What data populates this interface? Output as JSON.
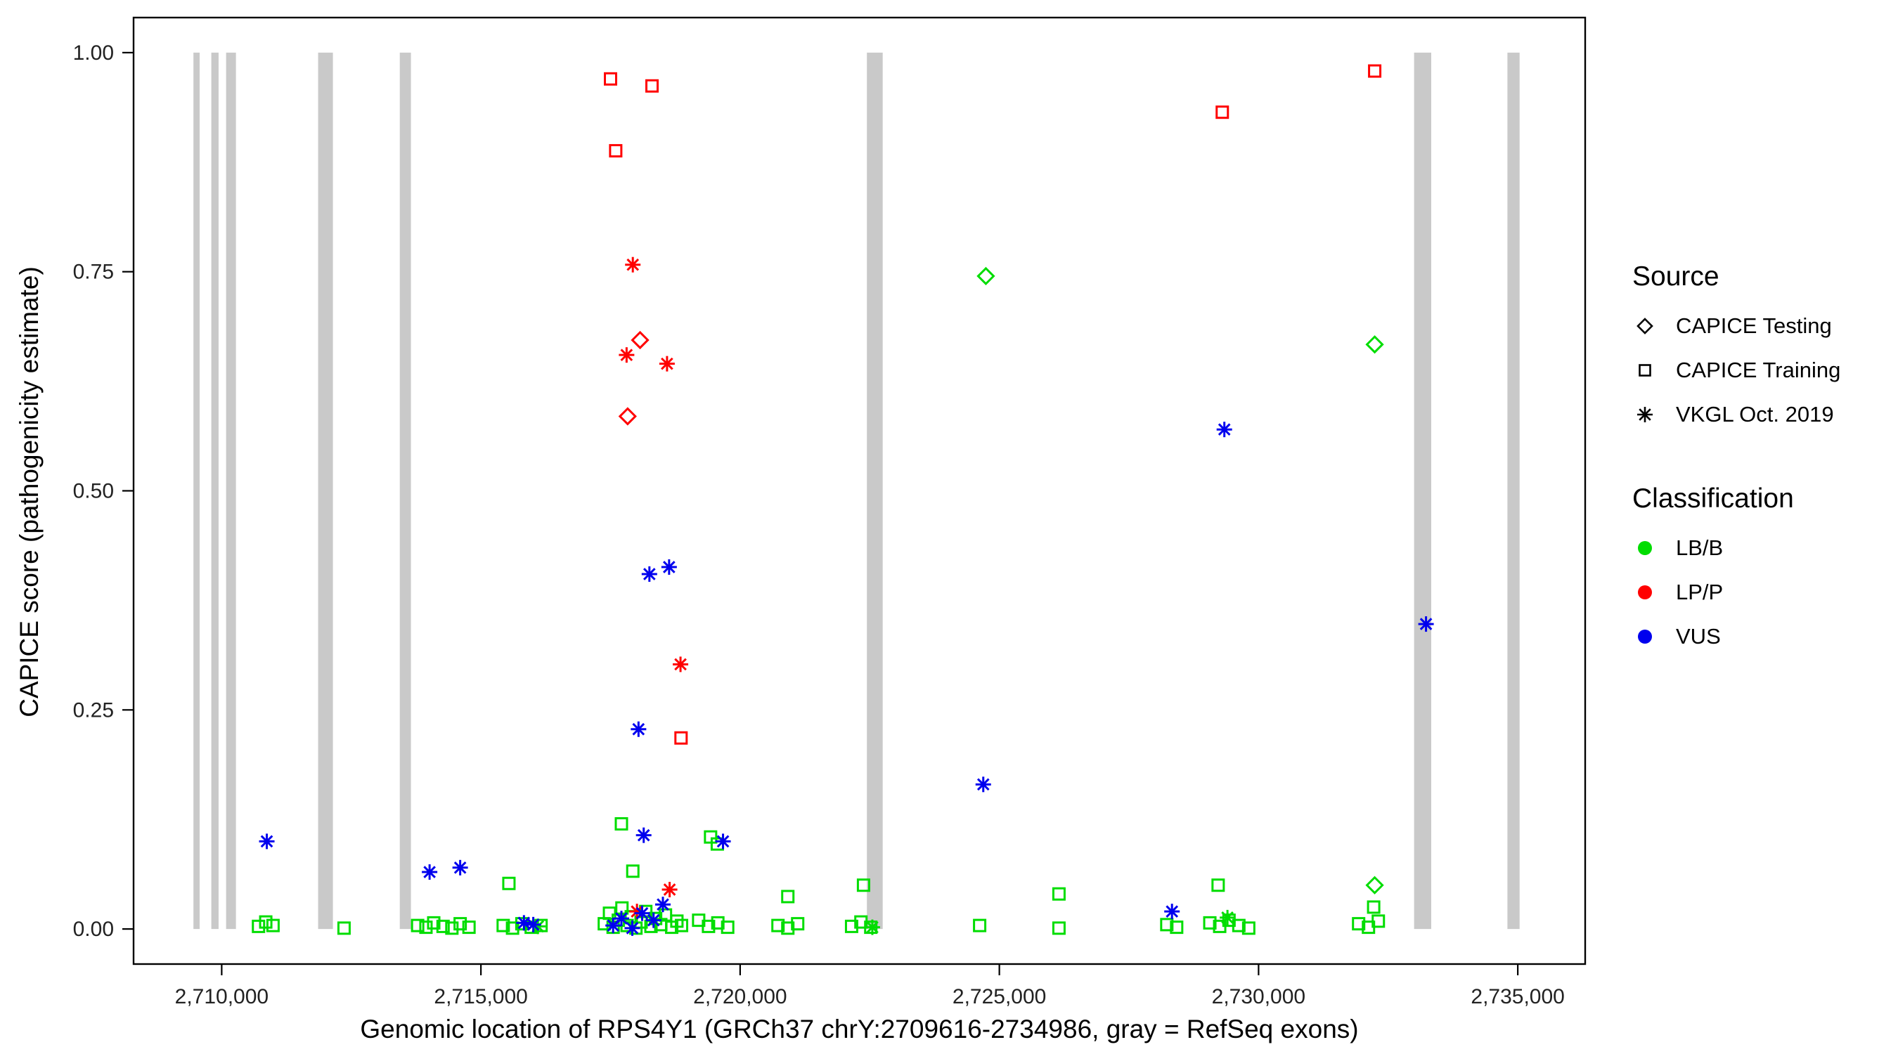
{
  "figure": {
    "xlabel": "Genomic location of RPS4Y1 (GRCh37 chrY:2709616-2734986, gray = RefSeq exons)",
    "ylabel": "CAPICE score (pathogenicity estimate)"
  },
  "legend_source": {
    "title": "Source",
    "items": [
      {
        "label": "CAPICE Testing",
        "marker": "diamond"
      },
      {
        "label": "CAPICE Training",
        "marker": "square"
      },
      {
        "label": "VKGL Oct. 2019",
        "marker": "asterisk"
      }
    ]
  },
  "legend_classification": {
    "title": "Classification",
    "items": [
      {
        "label": "LB/B",
        "color": "#00DD00"
      },
      {
        "label": "LP/P",
        "color": "#FF0000"
      },
      {
        "label": "VUS",
        "color": "#0000EE"
      }
    ]
  },
  "chart_data": {
    "type": "scatter",
    "title": "",
    "xlabel": "Genomic location of RPS4Y1 (GRCh37 chrY:2709616-2734986, gray = RefSeq exons)",
    "ylabel": "CAPICE score (pathogenicity estimate)",
    "xlim": [
      2708300,
      2736300
    ],
    "ylim": [
      -0.04,
      1.04
    ],
    "grid": false,
    "legend_position": "right",
    "exon_color": "#C9C9C9",
    "x_ticks": [
      {
        "value": 2710000,
        "label": "2,710,000"
      },
      {
        "value": 2715000,
        "label": "2,715,000"
      },
      {
        "value": 2720000,
        "label": "2,720,000"
      },
      {
        "value": 2725000,
        "label": "2,725,000"
      },
      {
        "value": 2730000,
        "label": "2,730,000"
      },
      {
        "value": 2735000,
        "label": "2,735,000"
      }
    ],
    "y_ticks": [
      {
        "value": 0.0,
        "label": "0.00"
      },
      {
        "value": 0.25,
        "label": "0.25"
      },
      {
        "value": 0.5,
        "label": "0.50"
      },
      {
        "value": 0.75,
        "label": "0.75"
      },
      {
        "value": 1.0,
        "label": "1.00"
      }
    ],
    "exon_regions": [
      [
        2709455,
        2709575
      ],
      [
        2709800,
        2709940
      ],
      [
        2710085,
        2710275
      ],
      [
        2711860,
        2712145
      ],
      [
        2713435,
        2713650
      ],
      [
        2722445,
        2722750
      ],
      [
        2733000,
        2733330
      ],
      [
        2734800,
        2735035
      ]
    ],
    "point_format": [
      "genomic_location",
      "capice_score",
      "source_marker"
    ],
    "marker_map": {
      "diamond": "CAPICE Testing",
      "square": "CAPICE Training",
      "asterisk": "VKGL Oct. 2019"
    },
    "series": [
      {
        "name": "LB/B",
        "color": "#00DD00",
        "points": [
          [
            2724740,
            0.745,
            "diamond"
          ],
          [
            2732240,
            0.667,
            "diamond"
          ],
          [
            2732240,
            0.05,
            "diamond"
          ],
          [
            2717710,
            0.12,
            "square"
          ],
          [
            2717930,
            0.066,
            "square"
          ],
          [
            2719430,
            0.105,
            "square"
          ],
          [
            2719560,
            0.097,
            "square"
          ],
          [
            2715540,
            0.052,
            "square"
          ],
          [
            2720920,
            0.037,
            "square"
          ],
          [
            2722380,
            0.05,
            "square"
          ],
          [
            2726150,
            0.04,
            "square"
          ],
          [
            2729220,
            0.05,
            "square"
          ],
          [
            2732220,
            0.025,
            "square"
          ],
          [
            2722550,
            0.002,
            "asterisk"
          ],
          [
            2729400,
            0.013,
            "asterisk"
          ],
          [
            2716100,
            0.003,
            "asterisk"
          ],
          [
            2710710,
            0.003,
            "square"
          ],
          [
            2710850,
            0.008,
            "square"
          ],
          [
            2710990,
            0.004,
            "square"
          ],
          [
            2712360,
            0.001,
            "square"
          ],
          [
            2713780,
            0.004,
            "square"
          ],
          [
            2713940,
            0.002,
            "square"
          ],
          [
            2714090,
            0.007,
            "square"
          ],
          [
            2714270,
            0.003,
            "square"
          ],
          [
            2714440,
            0.001,
            "square"
          ],
          [
            2714600,
            0.006,
            "square"
          ],
          [
            2714770,
            0.002,
            "square"
          ],
          [
            2715430,
            0.004,
            "square"
          ],
          [
            2715610,
            0.001,
            "square"
          ],
          [
            2715790,
            0.006,
            "square"
          ],
          [
            2715970,
            0.002,
            "square"
          ],
          [
            2716160,
            0.004,
            "square"
          ],
          [
            2717380,
            0.006,
            "square"
          ],
          [
            2717480,
            0.018,
            "square"
          ],
          [
            2717550,
            0.002,
            "square"
          ],
          [
            2717650,
            0.01,
            "square"
          ],
          [
            2717720,
            0.024,
            "square"
          ],
          [
            2717820,
            0.004,
            "square"
          ],
          [
            2717900,
            0.014,
            "square"
          ],
          [
            2717990,
            0.001,
            "square"
          ],
          [
            2718090,
            0.008,
            "square"
          ],
          [
            2718180,
            0.02,
            "square"
          ],
          [
            2718280,
            0.003,
            "square"
          ],
          [
            2718370,
            0.012,
            "square"
          ],
          [
            2718470,
            0.005,
            "square"
          ],
          [
            2718560,
            0.016,
            "square"
          ],
          [
            2718680,
            0.002,
            "square"
          ],
          [
            2718780,
            0.009,
            "square"
          ],
          [
            2718870,
            0.004,
            "square"
          ],
          [
            2719200,
            0.01,
            "square"
          ],
          [
            2719390,
            0.003,
            "square"
          ],
          [
            2719570,
            0.007,
            "square"
          ],
          [
            2719760,
            0.002,
            "square"
          ],
          [
            2720730,
            0.004,
            "square"
          ],
          [
            2720920,
            0.001,
            "square"
          ],
          [
            2721110,
            0.006,
            "square"
          ],
          [
            2722150,
            0.003,
            "square"
          ],
          [
            2722330,
            0.008,
            "square"
          ],
          [
            2722520,
            0.002,
            "square"
          ],
          [
            2724620,
            0.004,
            "square"
          ],
          [
            2726150,
            0.001,
            "square"
          ],
          [
            2728230,
            0.005,
            "square"
          ],
          [
            2728420,
            0.002,
            "square"
          ],
          [
            2729060,
            0.007,
            "square"
          ],
          [
            2729250,
            0.003,
            "square"
          ],
          [
            2729430,
            0.01,
            "square"
          ],
          [
            2729620,
            0.004,
            "square"
          ],
          [
            2729810,
            0.001,
            "square"
          ],
          [
            2731930,
            0.006,
            "square"
          ],
          [
            2732120,
            0.002,
            "square"
          ],
          [
            2732310,
            0.009,
            "square"
          ]
        ]
      },
      {
        "name": "LP/P",
        "color": "#FF0000",
        "points": [
          [
            2717500,
            0.97,
            "square"
          ],
          [
            2717600,
            0.888,
            "square"
          ],
          [
            2718300,
            0.962,
            "square"
          ],
          [
            2729300,
            0.932,
            "square"
          ],
          [
            2732240,
            0.979,
            "square"
          ],
          [
            2718860,
            0.218,
            "square"
          ],
          [
            2717930,
            0.758,
            "asterisk"
          ],
          [
            2717810,
            0.655,
            "asterisk"
          ],
          [
            2718590,
            0.645,
            "asterisk"
          ],
          [
            2718850,
            0.302,
            "asterisk"
          ],
          [
            2718640,
            0.045,
            "asterisk"
          ],
          [
            2718010,
            0.02,
            "asterisk"
          ],
          [
            2718070,
            0.672,
            "diamond"
          ],
          [
            2717830,
            0.585,
            "diamond"
          ]
        ]
      },
      {
        "name": "VUS",
        "color": "#0000EE",
        "points": [
          [
            2710870,
            0.1,
            "asterisk"
          ],
          [
            2714010,
            0.065,
            "asterisk"
          ],
          [
            2714600,
            0.07,
            "asterisk"
          ],
          [
            2716010,
            0.005,
            "asterisk"
          ],
          [
            2715830,
            0.007,
            "asterisk"
          ],
          [
            2718250,
            0.405,
            "asterisk"
          ],
          [
            2718630,
            0.413,
            "asterisk"
          ],
          [
            2718040,
            0.228,
            "asterisk"
          ],
          [
            2718140,
            0.107,
            "asterisk"
          ],
          [
            2719670,
            0.1,
            "asterisk"
          ],
          [
            2729340,
            0.57,
            "asterisk"
          ],
          [
            2724690,
            0.165,
            "asterisk"
          ],
          [
            2733230,
            0.348,
            "asterisk"
          ],
          [
            2728330,
            0.02,
            "asterisk"
          ],
          [
            2717550,
            0.004,
            "asterisk"
          ],
          [
            2717710,
            0.012,
            "asterisk"
          ],
          [
            2717920,
            0.001,
            "asterisk"
          ],
          [
            2718110,
            0.018,
            "asterisk"
          ],
          [
            2718330,
            0.01,
            "asterisk"
          ],
          [
            2718510,
            0.028,
            "asterisk"
          ]
        ]
      }
    ]
  }
}
